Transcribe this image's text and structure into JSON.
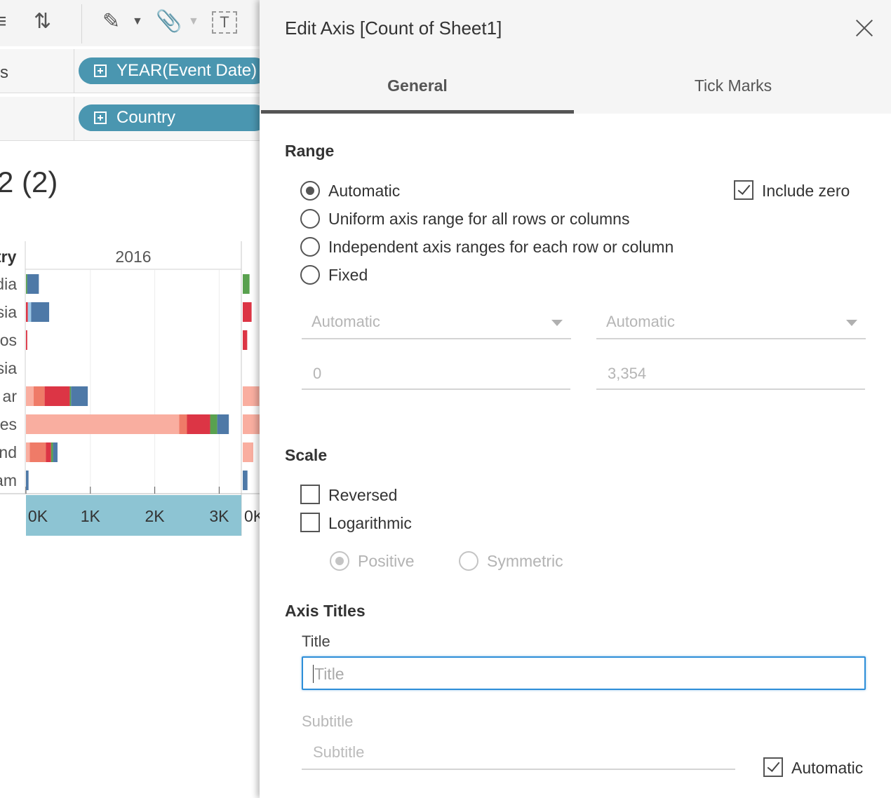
{
  "workspace": {
    "shelves": [
      {
        "label": "s",
        "pill": "YEAR(Event Date)"
      },
      {
        "label": "",
        "pill": "Country"
      }
    ],
    "sheet_title": "2 (2)"
  },
  "chart_data": {
    "type": "bar",
    "stacked": true,
    "orientation": "horizontal",
    "column_header": "2016",
    "row_header_partial": "try",
    "categories_partial": [
      "dia",
      "sia",
      "os",
      "sia",
      "ar",
      "es",
      "nd",
      "am"
    ],
    "xlim": [
      0,
      3354
    ],
    "x_tick_labels": [
      "0K",
      "1K",
      "2K",
      "3K"
    ],
    "second_pane_tick_partial": "0K",
    "colors": [
      "#f9aea0",
      "#ef7b68",
      "#dc3545",
      "#59a14f",
      "#a0cbe8",
      "#4e79a7"
    ],
    "series": [
      {
        "values": [
          0,
          0,
          0,
          0,
          120,
          2380,
          60,
          0
        ]
      },
      {
        "values": [
          0,
          0,
          0,
          0,
          170,
          120,
          250,
          0
        ]
      },
      {
        "values": [
          0,
          30,
          20,
          0,
          390,
          360,
          80,
          0
        ]
      },
      {
        "values": [
          20,
          0,
          0,
          0,
          20,
          110,
          30,
          0
        ]
      },
      {
        "values": [
          0,
          50,
          0,
          0,
          0,
          0,
          0,
          0
        ]
      },
      {
        "values": [
          180,
          280,
          0,
          0,
          260,
          180,
          70,
          40
        ]
      }
    ]
  },
  "dialog": {
    "title": "Edit Axis [Count of Sheet1]",
    "tabs": [
      "General",
      "Tick Marks"
    ],
    "range": {
      "heading": "Range",
      "options": [
        {
          "label": "Automatic",
          "checked": true
        },
        {
          "label": "Uniform axis range for all rows or columns",
          "checked": false
        },
        {
          "label": "Independent axis ranges for each row or column",
          "checked": false
        },
        {
          "label": "Fixed",
          "checked": false
        }
      ],
      "include_zero": "Include zero",
      "start_dropdown": "Automatic",
      "end_dropdown": "Automatic",
      "start_value": "0",
      "end_value": "3,354"
    },
    "scale": {
      "heading": "Scale",
      "reversed": "Reversed",
      "logarithmic": "Logarithmic",
      "positive": "Positive",
      "symmetric": "Symmetric"
    },
    "axis_titles": {
      "heading": "Axis Titles",
      "title_label": "Title",
      "title_placeholder": "Title",
      "subtitle_label": "Subtitle",
      "subtitle_placeholder": "Subtitle",
      "automatic": "Automatic"
    }
  }
}
